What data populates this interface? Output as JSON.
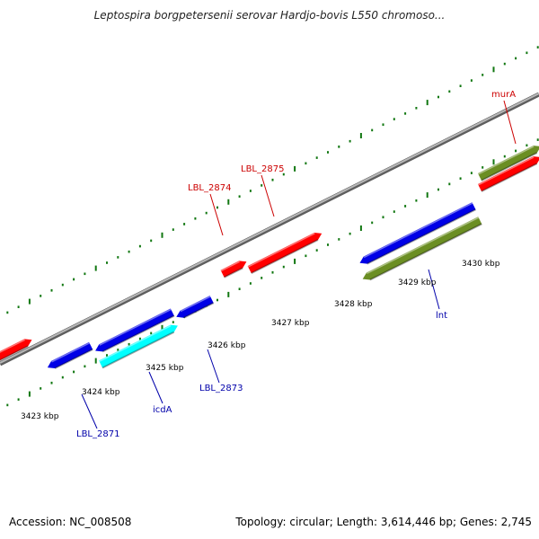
{
  "title": "Leptospira borgpetersenii serovar Hardjo-bovis L550 chromoso...",
  "footer": {
    "accession": "Accession: NC_008508",
    "summary": "Topology: circular; Length: 3,614,446 bp; Genes: 2,745"
  },
  "colors": {
    "forward_gene": "#ff0000",
    "reverse_gene": "#0000e6",
    "rna_gene": "#00ffff",
    "olive_gene": "#6b8e23",
    "backbone": "#808080",
    "tick": "#117711",
    "forward_label": "#cc0000",
    "reverse_label": "#0000aa"
  },
  "scale_ticks": [
    {
      "label": "3423 kbp"
    },
    {
      "label": "3424 kbp"
    },
    {
      "label": "3425 kbp"
    },
    {
      "label": "3426 kbp"
    },
    {
      "label": "3427 kbp"
    },
    {
      "label": "3428 kbp"
    },
    {
      "label": "3429 kbp"
    },
    {
      "label": "3430 kbp"
    }
  ],
  "gene_labels": [
    {
      "name": "murA",
      "strand": "forward"
    },
    {
      "name": "LBL_2875",
      "strand": "forward"
    },
    {
      "name": "LBL_2874",
      "strand": "forward"
    },
    {
      "name": "lnt",
      "strand": "reverse"
    },
    {
      "name": "LBL_2873",
      "strand": "reverse"
    },
    {
      "name": "icdA",
      "strand": "reverse"
    },
    {
      "name": "LBL_2871",
      "strand": "reverse"
    }
  ]
}
